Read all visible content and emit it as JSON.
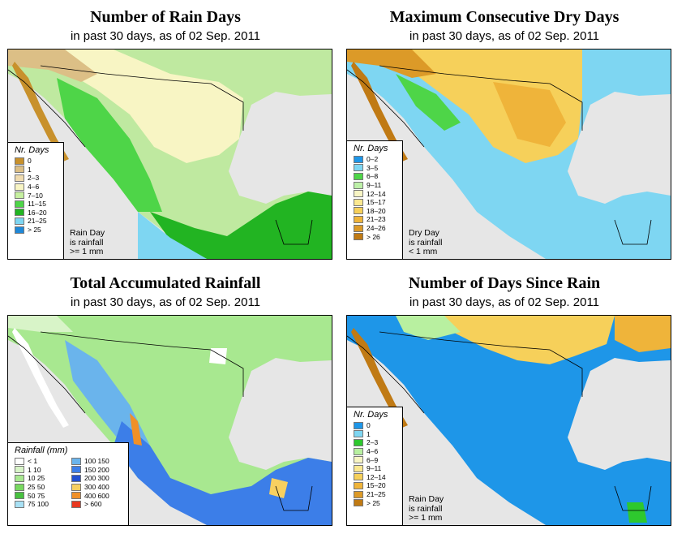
{
  "panels": [
    {
      "title": "Number of Rain Days",
      "subtitle": "in past 30 days, as of  02 Sep. 2011",
      "legend_title": "Nr. Days",
      "legend": [
        {
          "label": "0",
          "color": "#c8912c"
        },
        {
          "label": "1",
          "color": "#dcbf86"
        },
        {
          "label": "2–3",
          "color": "#f0dcb0"
        },
        {
          "label": "4–6",
          "color": "#f8f5c4"
        },
        {
          "label": "7–10",
          "color": "#c6f0a0"
        },
        {
          "label": "11–15",
          "color": "#4ed548"
        },
        {
          "label": "16–20",
          "color": "#22b422"
        },
        {
          "label": "21–25",
          "color": "#7ed6f2"
        },
        {
          "label": "> 25",
          "color": "#1e88d8"
        }
      ],
      "note": [
        "Rain Day",
        "is rainfall",
        ">= 1 mm"
      ]
    },
    {
      "title": "Maximum Consecutive Dry Days",
      "subtitle": "in past 30 days, as of  02 Sep. 2011",
      "legend_title": "Nr. Days",
      "legend": [
        {
          "label": "0–2",
          "color": "#1e96e8"
        },
        {
          "label": "3–5",
          "color": "#7ed6f2"
        },
        {
          "label": "6–8",
          "color": "#4ed548"
        },
        {
          "label": "9–11",
          "color": "#bdf0a8"
        },
        {
          "label": "12–14",
          "color": "#f8f5c4"
        },
        {
          "label": "15–17",
          "color": "#fbe890"
        },
        {
          "label": "18–20",
          "color": "#f6d05a"
        },
        {
          "label": "21–23",
          "color": "#efb43a"
        },
        {
          "label": "24–26",
          "color": "#dc9a28"
        },
        {
          "label": "> 26",
          "color": "#c07a14"
        }
      ],
      "note": [
        "Dry Day",
        "is rainfall",
        "< 1 mm"
      ]
    },
    {
      "title": "Total Accumulated Rainfall",
      "subtitle": "in past 30 days, as of  02 Sep. 2011",
      "legend_title": "Rainfall (mm)",
      "legend_left": [
        {
          "label": "< 1",
          "color": "#ffffff"
        },
        {
          "label": "1    10",
          "color": "#d8f4c8"
        },
        {
          "label": "10    25",
          "color": "#a8e890"
        },
        {
          "label": "25    50",
          "color": "#78d860"
        },
        {
          "label": "50    75",
          "color": "#48c040"
        },
        {
          "label": "75  100",
          "color": "#a8e0f4"
        }
      ],
      "legend_right": [
        {
          "label": "100  150",
          "color": "#6ab4ec"
        },
        {
          "label": "150  200",
          "color": "#3c7ee8"
        },
        {
          "label": "200  300",
          "color": "#2250d0"
        },
        {
          "label": "300  400",
          "color": "#f8d060"
        },
        {
          "label": "400  600",
          "color": "#f09028"
        },
        {
          "label": "> 600",
          "color": "#e83820"
        }
      ],
      "note": []
    },
    {
      "title": "Number of Days Since Rain",
      "subtitle": "in past 30 days, as of  02 Sep. 2011",
      "legend_title": "Nr. Days",
      "legend": [
        {
          "label": "0",
          "color": "#1e96e8"
        },
        {
          "label": "1",
          "color": "#7ed6f2"
        },
        {
          "label": "2–3",
          "color": "#2ec82e"
        },
        {
          "label": "4–6",
          "color": "#b8f0a0"
        },
        {
          "label": "6–9",
          "color": "#f8f5c4"
        },
        {
          "label": "9–11",
          "color": "#fbe890"
        },
        {
          "label": "12–14",
          "color": "#f6d05a"
        },
        {
          "label": "15–20",
          "color": "#efb43a"
        },
        {
          "label": "21–25",
          "color": "#dc9a28"
        },
        {
          "label": "> 25",
          "color": "#c07a14"
        }
      ],
      "note": [
        "Rain Day",
        "is rainfall",
        ">= 1 mm"
      ]
    }
  ]
}
